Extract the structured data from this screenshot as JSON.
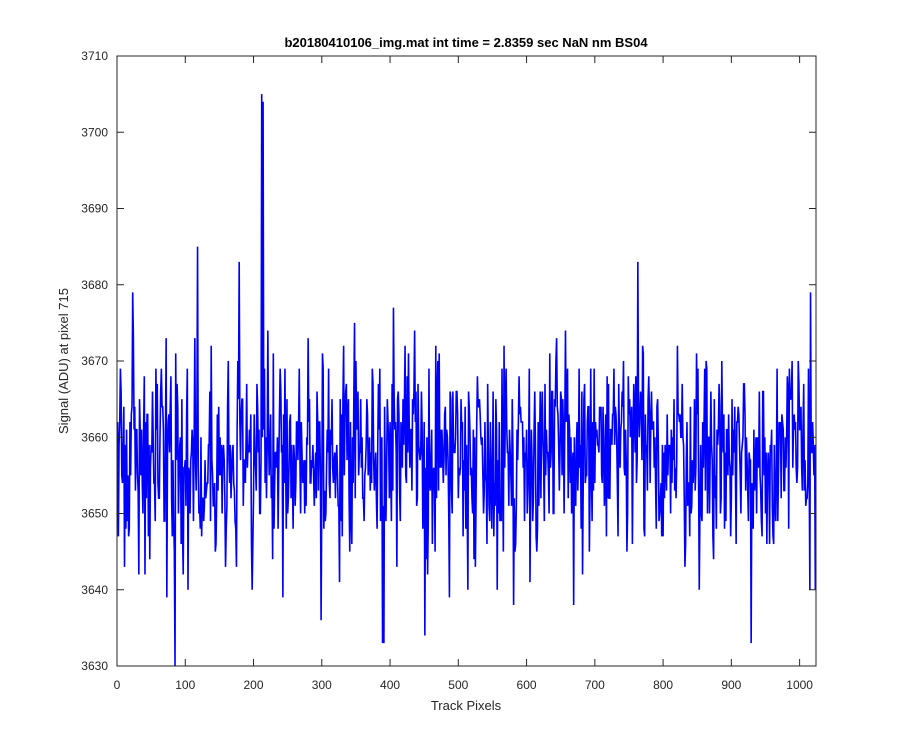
{
  "chart_data": {
    "type": "line",
    "title": "b20180410106_img.mat int time = 2.8359 sec  NaN nm BS04",
    "xlabel": "Track Pixels",
    "ylabel": "Signal (ADU) at pixel 715",
    "xlim": [
      0,
      1024
    ],
    "ylim": [
      3630,
      3710
    ],
    "xticks": [
      0,
      100,
      200,
      300,
      400,
      500,
      600,
      700,
      800,
      900,
      1000
    ],
    "yticks": [
      3630,
      3640,
      3650,
      3660,
      3670,
      3680,
      3690,
      3700,
      3710
    ],
    "grid": false,
    "line_color": "#0000ff",
    "n_points": 1024,
    "mean": 3658,
    "noise_amplitude": 12,
    "features": [
      {
        "x": 1,
        "y": 3647
      },
      {
        "x": 5,
        "y": 3666
      },
      {
        "x": 22,
        "y": 3679
      },
      {
        "x": 40,
        "y": 3642
      },
      {
        "x": 72,
        "y": 3639
      },
      {
        "x": 84,
        "y": 3630
      },
      {
        "x": 117,
        "y": 3685
      },
      {
        "x": 178,
        "y": 3683
      },
      {
        "x": 211,
        "y": 3705
      },
      {
        "x": 213,
        "y": 3704
      },
      {
        "x": 242,
        "y": 3639
      },
      {
        "x": 298,
        "y": 3636
      },
      {
        "x": 388,
        "y": 3633
      },
      {
        "x": 390,
        "y": 3633
      },
      {
        "x": 450,
        "y": 3634
      },
      {
        "x": 580,
        "y": 3638
      },
      {
        "x": 668,
        "y": 3638
      },
      {
        "x": 762,
        "y": 3683
      },
      {
        "x": 928,
        "y": 3633
      },
      {
        "x": 1015,
        "y": 3679
      },
      {
        "x": 1022,
        "y": 3640
      }
    ]
  }
}
